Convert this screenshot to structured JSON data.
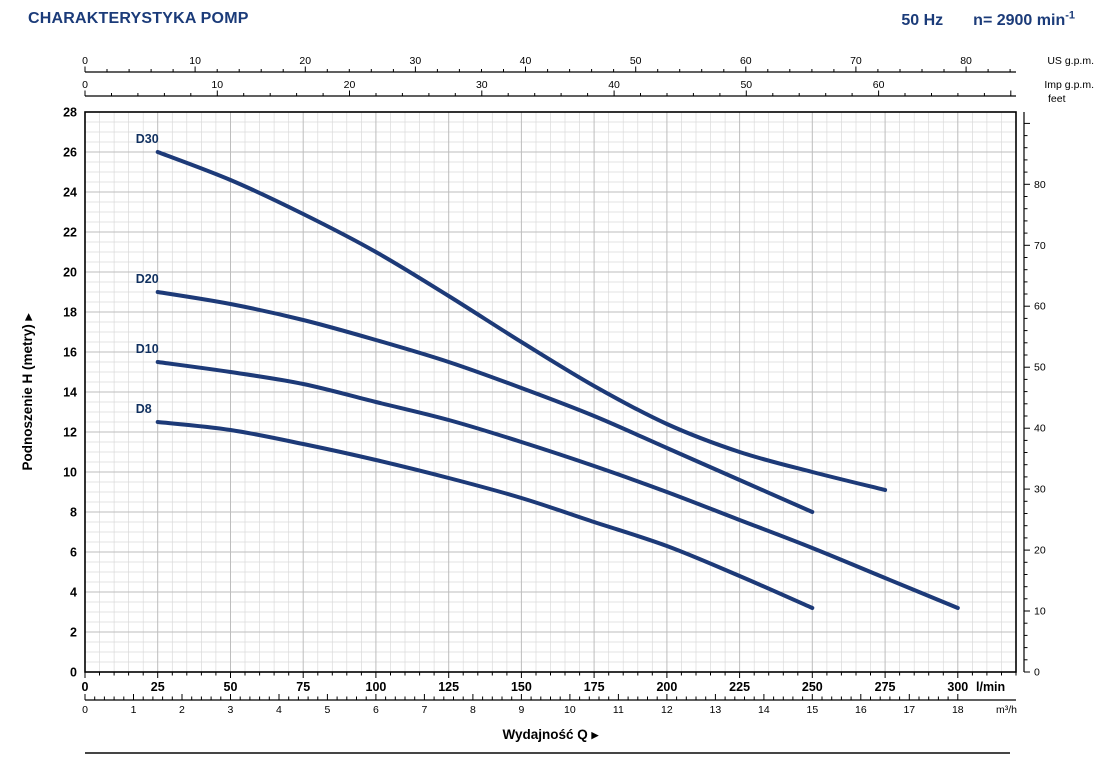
{
  "header": {
    "title": "CHARAKTERYSTYKA POMP",
    "frequency": "50 Hz",
    "speed_prefix": "n= 2900 min",
    "speed_exponent": "-1"
  },
  "chart_data": {
    "type": "line",
    "title": "CHARAKTERYSTYKA POMP",
    "xlabel": "Wydajność Q",
    "ylabel": "Podnoszenie H (metry)",
    "axis_arrow": "▶",
    "xlim_lmin": [
      0,
      320
    ],
    "ylim_m": [
      0,
      28
    ],
    "grid": "minor every 5 l/min and 0.5 m, major every 25 l/min and 2 m",
    "legend_position": "labels above left end of each curve",
    "curve_color": "#1d3a78",
    "label_color": "#10305f",
    "axes": {
      "bottom_primary": {
        "unit": "l/min",
        "ticks": [
          0,
          25,
          50,
          75,
          100,
          125,
          150,
          175,
          200,
          225,
          250,
          275,
          300
        ]
      },
      "bottom_secondary": {
        "unit": "m³/h",
        "ticks": [
          0,
          1,
          2,
          3,
          4,
          5,
          6,
          7,
          8,
          9,
          10,
          11,
          12,
          13,
          14,
          15,
          16,
          17,
          18
        ],
        "lmin_per_unit": 16.6667
      },
      "top_outer": {
        "unit": "US g.p.m.",
        "ticks": [
          0,
          10,
          20,
          30,
          40,
          50,
          60,
          70,
          80
        ],
        "lmin_per_unit": 3.7854
      },
      "top_inner": {
        "unit": "Imp g.p.m.",
        "ticks": [
          0,
          10,
          20,
          30,
          40,
          50,
          60
        ],
        "lmin_per_unit": 4.5461
      },
      "left": {
        "unit": "metry",
        "ticks": [
          0,
          2,
          4,
          6,
          8,
          10,
          12,
          14,
          16,
          18,
          20,
          22,
          24,
          26,
          28
        ]
      },
      "right": {
        "unit": "feet",
        "ticks": [
          0,
          10,
          20,
          30,
          40,
          50,
          60,
          70,
          80
        ],
        "m_per_unit": 0.3048
      }
    },
    "series": [
      {
        "name": "D30",
        "points": [
          [
            25,
            26
          ],
          [
            50,
            24.6
          ],
          [
            75,
            22.9
          ],
          [
            100,
            21.0
          ],
          [
            125,
            18.8
          ],
          [
            150,
            16.5
          ],
          [
            175,
            14.3
          ],
          [
            200,
            12.4
          ],
          [
            225,
            11.0
          ],
          [
            250,
            10.0
          ],
          [
            275,
            9.1
          ]
        ]
      },
      {
        "name": "D20",
        "points": [
          [
            25,
            19
          ],
          [
            50,
            18.4
          ],
          [
            75,
            17.6
          ],
          [
            100,
            16.6
          ],
          [
            125,
            15.5
          ],
          [
            150,
            14.2
          ],
          [
            175,
            12.8
          ],
          [
            200,
            11.2
          ],
          [
            225,
            9.6
          ],
          [
            250,
            8.0
          ]
        ]
      },
      {
        "name": "D10",
        "points": [
          [
            25,
            15.5
          ],
          [
            50,
            15.0
          ],
          [
            75,
            14.4
          ],
          [
            100,
            13.5
          ],
          [
            125,
            12.6
          ],
          [
            150,
            11.5
          ],
          [
            175,
            10.3
          ],
          [
            200,
            9.0
          ],
          [
            225,
            7.6
          ],
          [
            250,
            6.2
          ],
          [
            275,
            4.7
          ],
          [
            300,
            3.2
          ]
        ]
      },
      {
        "name": "D8",
        "points": [
          [
            25,
            12.5
          ],
          [
            50,
            12.1
          ],
          [
            75,
            11.4
          ],
          [
            100,
            10.6
          ],
          [
            125,
            9.7
          ],
          [
            150,
            8.7
          ],
          [
            175,
            7.5
          ],
          [
            200,
            6.3
          ],
          [
            225,
            4.8
          ],
          [
            250,
            3.2
          ]
        ]
      }
    ]
  }
}
